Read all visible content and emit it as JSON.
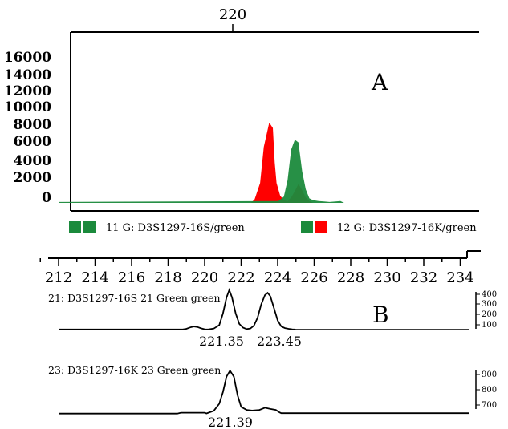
{
  "chart_data": [
    {
      "type": "area",
      "panel_label": "A",
      "top_tick_label": "220",
      "y_ticks": [
        "16000",
        "14000",
        "12000",
        "10000",
        "8000",
        "6000",
        "4000",
        "2000",
        "0"
      ],
      "ylim": [
        0,
        16000
      ],
      "xlim": [
        210.5,
        234.5
      ],
      "legend": [
        {
          "text": "11 G: D3S1297-16S/green",
          "colors": [
            "#1b8a3c",
            "#1b8a3c"
          ]
        },
        {
          "text": "12 G: D3S1297-16K/green",
          "colors": [
            "#1b8a3c",
            "#ff0000"
          ]
        }
      ],
      "series": [
        {
          "color": "#ff0000",
          "x": [
            210.5,
            221.0,
            221.2,
            221.5,
            221.7,
            222.0,
            222.2,
            222.3,
            222.4,
            222.6,
            222.8,
            223.0,
            223.2,
            223.4,
            223.6,
            223.8,
            224.0,
            224.2,
            224.4,
            234.5
          ],
          "y": [
            0,
            0,
            400,
            2200,
            6200,
            8900,
            8300,
            4500,
            2200,
            800,
            300,
            200,
            600,
            1300,
            2100,
            1400,
            600,
            200,
            0,
            0
          ]
        },
        {
          "color": "#1b8a3c",
          "x": [
            210.5,
            222.5,
            222.8,
            223.0,
            223.2,
            223.4,
            223.6,
            223.8,
            224.0,
            224.2,
            224.4,
            224.7,
            225.0,
            225.3,
            225.9,
            226.1,
            234.5
          ],
          "y": [
            100,
            200,
            700,
            2500,
            5900,
            7000,
            6700,
            3500,
            1500,
            500,
            300,
            200,
            150,
            100,
            200,
            0,
            0
          ]
        }
      ]
    },
    {
      "type": "line",
      "panel_label": "B",
      "x_ticks": [
        "212",
        "214",
        "216",
        "218",
        "220",
        "222",
        "224",
        "226",
        "228",
        "230",
        "232",
        "234"
      ],
      "traces": [
        {
          "label": "21: D3S1297-16S  21 Green  green",
          "y_ticks": [
            "400",
            "300",
            "200",
            "100"
          ],
          "ylim": [
            40,
            430
          ],
          "peak_labels": [
            "221.35",
            "223.45"
          ],
          "x": [
            212,
            218.8,
            219.0,
            219.2,
            219.4,
            219.6,
            219.8,
            220.0,
            220.2,
            220.5,
            220.8,
            221.0,
            221.2,
            221.35,
            221.5,
            221.7,
            221.9,
            222.1,
            222.3,
            222.5,
            222.7,
            222.9,
            223.1,
            223.3,
            223.45,
            223.6,
            223.8,
            224.0,
            224.2,
            224.4,
            224.6,
            224.8,
            224.9,
            225.0,
            234.5
          ],
          "y": [
            62,
            62,
            68,
            80,
            88,
            84,
            72,
            64,
            62,
            70,
            100,
            200,
            340,
            405,
            340,
            200,
            110,
            78,
            66,
            70,
            95,
            165,
            280,
            360,
            380,
            350,
            245,
            140,
            88,
            74,
            68,
            64,
            62,
            60,
            60
          ]
        },
        {
          "label": "23: D3S1297-16K  23 Green  green",
          "y_ticks": [
            "900",
            "800",
            "700"
          ],
          "ylim": [
            620,
            950
          ],
          "peak_labels": [
            "221.39"
          ],
          "x": [
            212,
            218.5,
            218.7,
            220.0,
            220.1,
            220.5,
            220.8,
            221.0,
            221.2,
            221.39,
            221.6,
            221.8,
            222.0,
            222.3,
            222.6,
            223.0,
            223.3,
            223.6,
            223.9,
            224.1,
            224.2,
            234.5
          ],
          "y": [
            642,
            642,
            648,
            648,
            643,
            660,
            705,
            780,
            880,
            918,
            880,
            760,
            685,
            666,
            662,
            666,
            680,
            672,
            666,
            650,
            645,
            645
          ]
        }
      ]
    }
  ]
}
